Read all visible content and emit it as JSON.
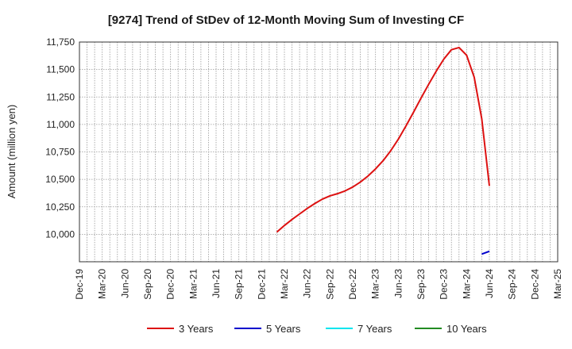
{
  "chart_data": {
    "type": "line",
    "title": "[9274]  Trend of StDev of 12-Month Moving Sum of Investing CF",
    "xlabel": "",
    "ylabel": "Amount (million yen)",
    "ylim": [
      9750,
      11750
    ],
    "yticks": [
      10000,
      10250,
      10500,
      10750,
      11000,
      11250,
      11500,
      11750
    ],
    "ytick_labels": [
      "10,000",
      "10,250",
      "10,500",
      "10,750",
      "11,000",
      "11,250",
      "11,500",
      "11,750"
    ],
    "x_range": [
      "2019-12",
      "2025-03"
    ],
    "xtick_labels": [
      "Dec-19",
      "Mar-20",
      "Jun-20",
      "Sep-20",
      "Dec-20",
      "Mar-21",
      "Jun-21",
      "Sep-21",
      "Dec-21",
      "Mar-22",
      "Jun-22",
      "Sep-22",
      "Dec-22",
      "Mar-23",
      "Jun-23",
      "Sep-23",
      "Dec-23",
      "Mar-24",
      "Jun-24",
      "Sep-24",
      "Dec-24",
      "Mar-25"
    ],
    "grid": true,
    "legend_position": "bottom",
    "series": [
      {
        "name": "3 Years",
        "color": "#dd1111",
        "points": [
          [
            "2022-02",
            10020
          ],
          [
            "2022-03",
            10080
          ],
          [
            "2022-04",
            10135
          ],
          [
            "2022-05",
            10185
          ],
          [
            "2022-06",
            10235
          ],
          [
            "2022-07",
            10280
          ],
          [
            "2022-08",
            10320
          ],
          [
            "2022-09",
            10350
          ],
          [
            "2022-10",
            10370
          ],
          [
            "2022-11",
            10395
          ],
          [
            "2022-12",
            10430
          ],
          [
            "2023-01",
            10475
          ],
          [
            "2023-02",
            10530
          ],
          [
            "2023-03",
            10595
          ],
          [
            "2023-04",
            10670
          ],
          [
            "2023-05",
            10760
          ],
          [
            "2023-06",
            10865
          ],
          [
            "2023-07",
            10985
          ],
          [
            "2023-08",
            11110
          ],
          [
            "2023-09",
            11240
          ],
          [
            "2023-10",
            11365
          ],
          [
            "2023-11",
            11485
          ],
          [
            "2023-12",
            11595
          ],
          [
            "2024-01",
            11680
          ],
          [
            "2024-02",
            11700
          ],
          [
            "2024-03",
            11630
          ],
          [
            "2024-04",
            11430
          ],
          [
            "2024-05",
            11050
          ],
          [
            "2024-06",
            10440
          ]
        ]
      },
      {
        "name": "5 Years",
        "color": "#0000cc",
        "points": [
          [
            "2024-05",
            9820
          ],
          [
            "2024-06",
            9845
          ]
        ]
      },
      {
        "name": "7 Years",
        "color": "#00e5ee",
        "points": []
      },
      {
        "name": "10 Years",
        "color": "#228b22",
        "points": []
      }
    ]
  }
}
